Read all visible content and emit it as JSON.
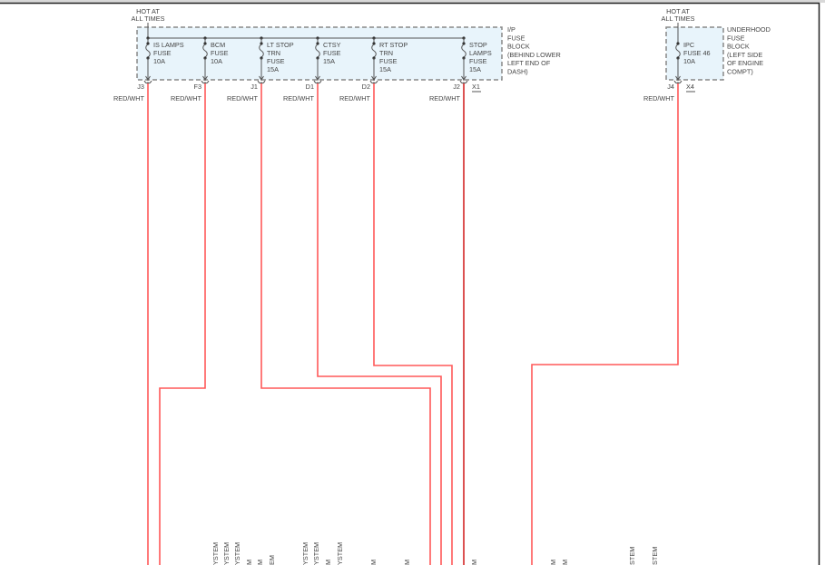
{
  "colors": {
    "wire": "#ff3b3b",
    "wire_dark": "#cc0000",
    "block_fill": "#e8f4fb",
    "block_border": "#888888"
  },
  "ip_block": {
    "hot_label": [
      "HOT AT",
      "ALL TIMES"
    ],
    "title": [
      "I/P",
      "FUSE",
      "BLOCK",
      "(BEHIND LOWER",
      "LEFT END OF",
      "DASH)"
    ],
    "connector_id": "X1",
    "fuses": [
      {
        "label": [
          "IS LAMPS",
          "FUSE",
          "10A"
        ],
        "pin": "J3",
        "wire": "RED/WHT"
      },
      {
        "label": [
          "BCM",
          "FUSE",
          "10A"
        ],
        "pin": "F3",
        "wire": "RED/WHT"
      },
      {
        "label": [
          "LT STOP",
          "TRN",
          "FUSE",
          "15A"
        ],
        "pin": "J1",
        "wire": "RED/WHT"
      },
      {
        "label": [
          "CTSY",
          "FUSE",
          "15A"
        ],
        "pin": "D1",
        "wire": "RED/WHT"
      },
      {
        "label": [
          "RT STOP",
          "TRN",
          "FUSE",
          "15A"
        ],
        "pin": "D2",
        "wire": "RED/WHT"
      },
      {
        "label": [
          "STOP",
          "LAMPS",
          "FUSE",
          "15A"
        ],
        "pin": "J2",
        "wire": "RED/WHT"
      }
    ]
  },
  "underhood_block": {
    "hot_label": [
      "HOT AT",
      "ALL TIMES"
    ],
    "title": [
      "UNDERHOOD",
      "FUSE",
      "BLOCK",
      "(LEFT SIDE",
      "OF ENGINE",
      "COMPT)"
    ],
    "connector_id": "X4",
    "fuses": [
      {
        "label": [
          "IPC",
          "FUSE 46",
          "10A"
        ],
        "pin": "J4",
        "wire": "RED/WHT"
      }
    ]
  },
  "bottom_labels": [
    "YSTEM",
    "YSTEM",
    "YSTEM",
    "M",
    "M",
    "EM",
    "YSTEM",
    "YSTEM",
    "M",
    "YSTEM",
    "M",
    "M",
    "M",
    "M",
    "M",
    "STEM",
    "STEM"
  ]
}
